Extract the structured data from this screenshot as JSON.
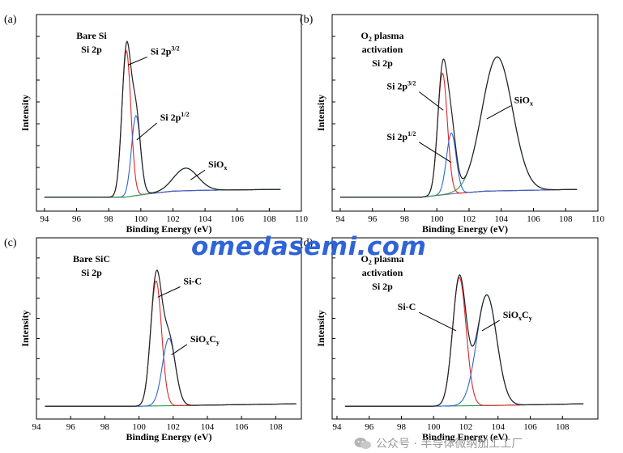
{
  "figure": {
    "background": "#ffffff"
  },
  "watermark": {
    "text": "omedasemi.com",
    "color": "#2f63d8"
  },
  "footer": {
    "icon": "wechat-icon",
    "text": "公众号 · 半导体微纳加工工厂"
  },
  "colors": {
    "envelope": "#222222",
    "red": "#e0262a",
    "blue": "#2f66d0",
    "green": "#2a9a4e",
    "purple": "#8c5bb5"
  },
  "chart_data": [
    {
      "panel": "(a)",
      "type": "line",
      "title_lines": [
        "Bare Si",
        "Si 2p"
      ],
      "xlabel": "Binding Energy (eV)",
      "ylabel": "Intensity",
      "xlim": [
        93.5,
        110
      ],
      "ylim": [
        -0.08,
        1.05
      ],
      "xticks": [
        94,
        96,
        98,
        100,
        102,
        104,
        106,
        108,
        110
      ],
      "x_range": [
        94,
        108.7
      ],
      "background": {
        "color": "purple",
        "points": [
          [
            94,
            0.0
          ],
          [
            99,
            0.0
          ],
          [
            100.5,
            0.02
          ],
          [
            102,
            0.035
          ],
          [
            104,
            0.04
          ],
          [
            108.7,
            0.045
          ]
        ]
      },
      "peaks": [
        {
          "label": "Si 2p3/2",
          "center": 99.1,
          "height": 0.84,
          "sigma": 0.28,
          "color": "red"
        },
        {
          "label": "Si 2p1/2",
          "center": 99.7,
          "height": 0.46,
          "sigma": 0.28,
          "color": "blue"
        },
        {
          "label": "SiOx",
          "center": 102.8,
          "height": 0.13,
          "sigma": 0.75,
          "color": "green"
        }
      ],
      "annotations": [
        {
          "text": "Si 2p",
          "sup": "3/2",
          "sub": "",
          "at": [
            99.2,
            0.76
          ],
          "label_at": [
            100.6,
            0.82
          ]
        },
        {
          "text": "Si 2p",
          "sup": "1/2",
          "sub": "",
          "at": [
            99.75,
            0.33
          ],
          "label_at": [
            101.2,
            0.44
          ]
        },
        {
          "text": "SiO",
          "sup": "",
          "sub": "x",
          "at": [
            103.1,
            0.1
          ],
          "label_at": [
            104.2,
            0.17
          ]
        }
      ]
    },
    {
      "panel": "(b)",
      "type": "line",
      "title_lines": [
        "O_2 plasma",
        "activation",
        "Si 2p"
      ],
      "xlabel": "Binding Energy (eV)",
      "ylabel": "Intensity",
      "xlim": [
        93.5,
        110
      ],
      "ylim": [
        -0.08,
        1.05
      ],
      "xticks": [
        94,
        96,
        98,
        100,
        102,
        104,
        106,
        108,
        110
      ],
      "x_range": [
        94,
        108.7
      ],
      "background": {
        "color": "purple",
        "points": [
          [
            94,
            0.0
          ],
          [
            99,
            0.0
          ],
          [
            101,
            0.02
          ],
          [
            103,
            0.035
          ],
          [
            108.7,
            0.045
          ]
        ]
      },
      "peaks": [
        {
          "label": "Si 2p3/2",
          "center": 100.35,
          "height": 0.7,
          "sigma": 0.3,
          "color": "red"
        },
        {
          "label": "Si 2p1/2",
          "center": 100.9,
          "height": 0.35,
          "sigma": 0.3,
          "color": "blue"
        },
        {
          "label": "SiOx",
          "center": 103.75,
          "height": 0.77,
          "sigma": 0.95,
          "color": "green"
        }
      ],
      "annotations": [
        {
          "text": "Si 2p",
          "sup": "3/2",
          "sub": "",
          "at": [
            100.4,
            0.5
          ],
          "label_at": [
            98.8,
            0.62
          ]
        },
        {
          "text": "Si 2p",
          "sup": "1/2",
          "sub": "",
          "at": [
            100.9,
            0.2
          ],
          "label_at": [
            98.8,
            0.33
          ]
        },
        {
          "text": "SiO",
          "sup": "",
          "sub": "x",
          "at": [
            103.1,
            0.45
          ],
          "label_at": [
            104.8,
            0.54
          ]
        }
      ]
    },
    {
      "panel": "(c)",
      "type": "line",
      "title_lines": [
        "Bare SiC",
        "Si 2p"
      ],
      "xlabel": "Binding Energy (eV)",
      "ylabel": "Intensity",
      "xlim": [
        94,
        109.5
      ],
      "ylim": [
        -0.08,
        1.05
      ],
      "xticks": [
        94,
        96,
        98,
        100,
        102,
        104,
        106,
        108
      ],
      "x_range": [
        94.5,
        109.2
      ],
      "background": {
        "color": "green",
        "points": [
          [
            94.5,
            0.0
          ],
          [
            100,
            0.0
          ],
          [
            103,
            0.005
          ],
          [
            109.2,
            0.015
          ]
        ]
      },
      "peaks": [
        {
          "label": "Si-C",
          "center": 101.0,
          "height": 0.78,
          "sigma": 0.32,
          "color": "red"
        },
        {
          "label": "SiOxCy",
          "center": 101.75,
          "height": 0.42,
          "sigma": 0.38,
          "color": "blue"
        }
      ],
      "annotations": [
        {
          "text": "Si-C",
          "sup": "",
          "sub": "",
          "at": [
            101.1,
            0.68
          ],
          "label_at": [
            102.6,
            0.76
          ]
        },
        {
          "text": "SiO",
          "sup": "",
          "sub": "xCy",
          "at": [
            101.9,
            0.32
          ],
          "label_at": [
            103.0,
            0.4
          ]
        }
      ]
    },
    {
      "panel": "(d)",
      "type": "line",
      "title_lines": [
        "O_2 plasma",
        "activation",
        "Si 2p"
      ],
      "xlabel": "Binding Energy (eV)",
      "ylabel": "Intensity",
      "xlim": [
        93.7,
        110.2
      ],
      "ylim": [
        -0.08,
        1.05
      ],
      "xticks": [
        94,
        96,
        98,
        100,
        102,
        104,
        106,
        108
      ],
      "x_range": [
        94.5,
        109.3
      ],
      "background": {
        "color": "green",
        "points": [
          [
            94.5,
            0.0
          ],
          [
            100,
            0.0
          ],
          [
            104,
            0.005
          ],
          [
            109.3,
            0.015
          ]
        ]
      },
      "peaks": [
        {
          "label": "Si-C",
          "center": 101.6,
          "height": 0.8,
          "sigma": 0.42,
          "color": "red"
        },
        {
          "label": "SiOxCy",
          "center": 103.3,
          "height": 0.69,
          "sigma": 0.62,
          "color": "blue"
        }
      ],
      "annotations": [
        {
          "text": "Si-C",
          "sup": "",
          "sub": "",
          "at": [
            101.4,
            0.47
          ],
          "label_at": [
            99.0,
            0.6
          ]
        },
        {
          "text": "SiO",
          "sup": "",
          "sub": "xCy",
          "at": [
            103.0,
            0.47
          ],
          "label_at": [
            104.3,
            0.55
          ]
        }
      ]
    }
  ]
}
